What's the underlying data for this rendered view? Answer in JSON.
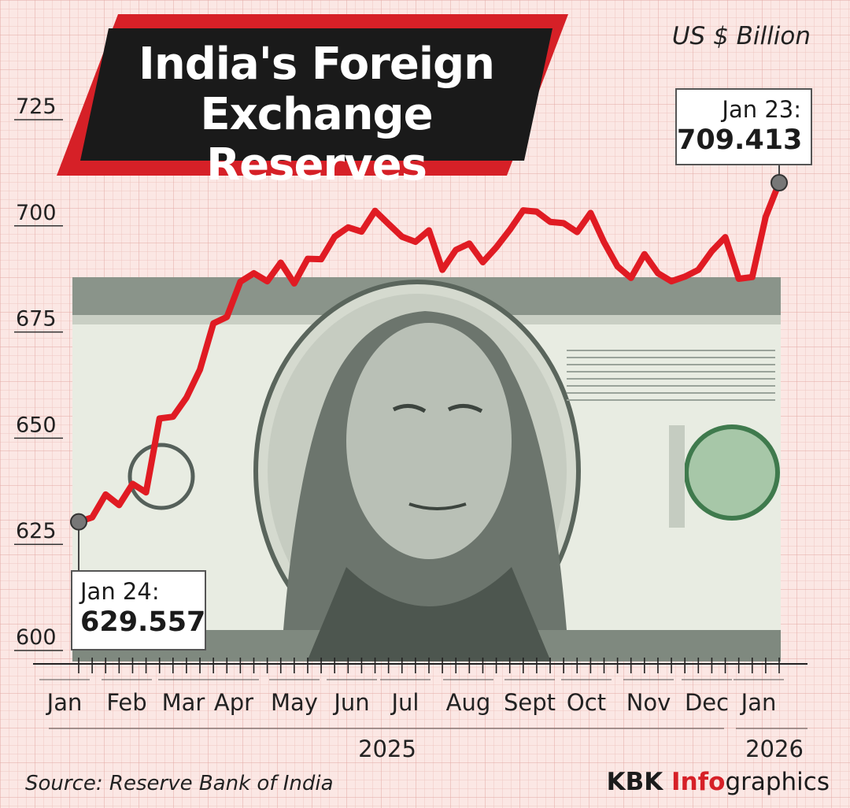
{
  "header": {
    "title_line1": "India's Foreign",
    "title_line2": "Exchange Reserves",
    "unit": "US $ Billion"
  },
  "callouts": {
    "start": {
      "label": "Jan 24:",
      "value": "629.557"
    },
    "end": {
      "label": "Jan 23:",
      "value": "709.413"
    }
  },
  "footer": {
    "source": "Source: Reserve Bank of India",
    "brand_part1": "KBK ",
    "brand_part2": "Info",
    "brand_part3": "graphics"
  },
  "years": [
    "2025",
    "2026"
  ],
  "colors": {
    "line": "#e01b23",
    "background": "#fbe7e4",
    "title_band": "#d62027",
    "title_box": "#1a1a1a"
  },
  "chart_data": {
    "type": "line",
    "title": "India's Foreign Exchange Reserves",
    "ylabel": "US $ Billion",
    "ylim": [
      600,
      725
    ],
    "yticks": [
      600,
      625,
      650,
      675,
      700,
      725
    ],
    "x_month_labels": [
      "Jan",
      "Feb",
      "Mar",
      "Apr",
      "May",
      "Jun",
      "Jul",
      "Aug",
      "Sept",
      "Oct",
      "Nov",
      "Dec",
      "Jan"
    ],
    "x_year_labels": [
      "2025",
      "2026"
    ],
    "grid": true,
    "series": [
      {
        "x": [
          "2025-01-24",
          "2025-01-31",
          "2025-02-07",
          "2025-02-14",
          "2025-02-21",
          "2025-02-28",
          "2025-03-07",
          "2025-03-14",
          "2025-03-21",
          "2025-03-28",
          "2025-04-04",
          "2025-04-11",
          "2025-04-18",
          "2025-04-25",
          "2025-05-02",
          "2025-05-09",
          "2025-05-16",
          "2025-05-23",
          "2025-05-30",
          "2025-06-06",
          "2025-06-13",
          "2025-06-20",
          "2025-06-27",
          "2025-07-04",
          "2025-07-11",
          "2025-07-18",
          "2025-07-25",
          "2025-08-01",
          "2025-08-08",
          "2025-08-15",
          "2025-08-22",
          "2025-08-29",
          "2025-09-05",
          "2025-09-12",
          "2025-09-19",
          "2025-09-26",
          "2025-10-03",
          "2025-10-10",
          "2025-10-17",
          "2025-10-24",
          "2025-10-31",
          "2025-11-07",
          "2025-11-14",
          "2025-11-21",
          "2025-11-28",
          "2025-12-05",
          "2025-12-12",
          "2025-12-19",
          "2025-12-26",
          "2026-01-02",
          "2026-01-09",
          "2026-01-16",
          "2026-01-23"
        ],
        "y": [
          629.557,
          630.6,
          636.0,
          633.5,
          638.5,
          636.5,
          653.9,
          654.3,
          658.8,
          665.4,
          676.3,
          677.8,
          686.1,
          688.1,
          686.2,
          690.6,
          685.7,
          691.5,
          691.4,
          696.7,
          698.9,
          697.9,
          702.8,
          699.7,
          696.7,
          695.5,
          698.2,
          688.9,
          693.6,
          695.1,
          690.7,
          694.2,
          698.3,
          702.9,
          702.6,
          700.2,
          699.9,
          697.8,
          702.3,
          695.4,
          689.7,
          687.0,
          692.6,
          688.1,
          686.2,
          687.3,
          688.9,
          693.3,
          696.6,
          686.8,
          687.2,
          701.4,
          709.413
        ]
      }
    ]
  }
}
